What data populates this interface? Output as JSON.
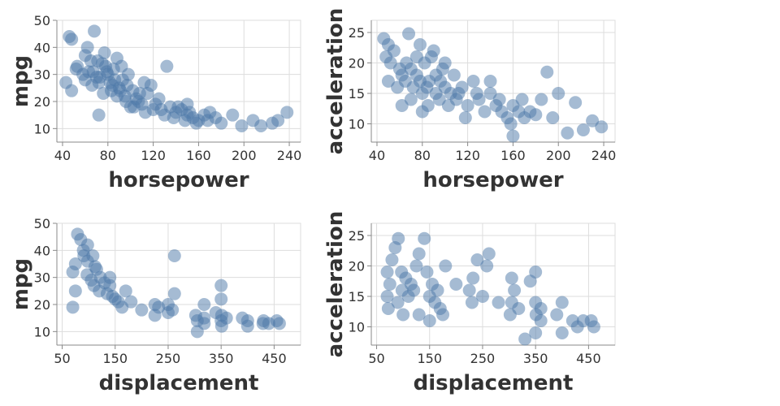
{
  "colors": {
    "point": "#4c78a8",
    "grid": "#dddddd",
    "text": "#333333"
  },
  "chart_data": [
    {
      "type": "scatter",
      "xlabel": "horsepower",
      "ylabel": "mpg",
      "xlim": [
        35,
        250
      ],
      "ylim": [
        5,
        50
      ],
      "xticks": [
        "40",
        "80",
        "120",
        "160",
        "200",
        "240"
      ],
      "yticks": [
        "10",
        "20",
        "30",
        "40",
        "50"
      ],
      "grid": true,
      "points": [
        [
          46,
          44
        ],
        [
          48,
          43
        ],
        [
          52,
          32
        ],
        [
          53,
          33
        ],
        [
          60,
          37
        ],
        [
          62,
          40
        ],
        [
          65,
          35
        ],
        [
          67,
          31
        ],
        [
          68,
          46
        ],
        [
          70,
          29
        ],
        [
          71,
          35
        ],
        [
          72,
          27
        ],
        [
          75,
          34
        ],
        [
          77,
          38
        ],
        [
          78,
          33
        ],
        [
          80,
          30
        ],
        [
          82,
          27
        ],
        [
          84,
          26
        ],
        [
          86,
          28
        ],
        [
          88,
          36
        ],
        [
          90,
          25
        ],
        [
          92,
          33
        ],
        [
          95,
          22
        ],
        [
          97,
          26
        ],
        [
          100,
          18
        ],
        [
          102,
          24
        ],
        [
          105,
          21
        ],
        [
          107,
          20
        ],
        [
          110,
          19
        ],
        [
          112,
          27
        ],
        [
          115,
          23
        ],
        [
          120,
          17
        ],
        [
          125,
          21
        ],
        [
          130,
          15
        ],
        [
          132,
          33
        ],
        [
          135,
          18
        ],
        [
          140,
          16
        ],
        [
          145,
          17
        ],
        [
          150,
          15
        ],
        [
          155,
          14
        ],
        [
          160,
          13
        ],
        [
          165,
          15
        ],
        [
          170,
          16
        ],
        [
          175,
          14
        ],
        [
          180,
          12
        ],
        [
          190,
          15
        ],
        [
          198,
          11
        ],
        [
          208,
          13
        ],
        [
          215,
          11
        ],
        [
          225,
          12
        ],
        [
          230,
          13
        ],
        [
          238,
          16
        ],
        [
          43,
          27
        ],
        [
          48,
          24
        ],
        [
          58,
          30
        ],
        [
          60,
          28
        ],
        [
          63,
          31
        ],
        [
          66,
          26
        ],
        [
          73,
          29
        ],
        [
          76,
          23
        ],
        [
          79,
          31
        ],
        [
          83,
          24
        ],
        [
          85,
          32
        ],
        [
          88,
          22
        ],
        [
          91,
          24
        ],
        [
          93,
          28
        ],
        [
          96,
          20
        ],
        [
          98,
          30
        ],
        [
          103,
          18
        ],
        [
          108,
          23
        ],
        [
          113,
          16
        ],
        [
          118,
          26
        ],
        [
          122,
          19
        ],
        [
          127,
          17
        ],
        [
          138,
          14
        ],
        [
          142,
          18
        ],
        [
          148,
          13
        ],
        [
          152,
          16
        ],
        [
          158,
          12
        ],
        [
          168,
          13
        ],
        [
          150,
          19
        ],
        [
          72,
          15
        ]
      ]
    },
    {
      "type": "scatter",
      "xlabel": "horsepower",
      "ylabel": "acceleration",
      "xlim": [
        35,
        250
      ],
      "ylim": [
        7,
        27
      ],
      "xticks": [
        "40",
        "80",
        "120",
        "160",
        "200",
        "240"
      ],
      "yticks": [
        "10",
        "15",
        "20",
        "25"
      ],
      "grid": true,
      "points": [
        [
          46,
          24
        ],
        [
          48,
          21
        ],
        [
          50,
          23
        ],
        [
          52,
          20
        ],
        [
          55,
          22
        ],
        [
          60,
          19
        ],
        [
          62,
          18
        ],
        [
          65,
          17
        ],
        [
          68,
          24.8
        ],
        [
          70,
          19
        ],
        [
          72,
          16
        ],
        [
          75,
          18
        ],
        [
          78,
          17
        ],
        [
          80,
          15
        ],
        [
          82,
          20
        ],
        [
          84,
          16
        ],
        [
          86,
          17
        ],
        [
          88,
          21
        ],
        [
          90,
          22
        ],
        [
          92,
          15
        ],
        [
          95,
          14
        ],
        [
          98,
          19
        ],
        [
          100,
          16
        ],
        [
          105,
          15
        ],
        [
          108,
          18
        ],
        [
          110,
          14
        ],
        [
          115,
          16
        ],
        [
          120,
          13
        ],
        [
          125,
          17
        ],
        [
          130,
          14
        ],
        [
          135,
          12
        ],
        [
          140,
          15
        ],
        [
          145,
          13
        ],
        [
          150,
          12
        ],
        [
          155,
          11
        ],
        [
          160,
          13
        ],
        [
          165,
          12
        ],
        [
          170,
          11
        ],
        [
          175,
          12
        ],
        [
          180,
          11.5
        ],
        [
          190,
          18.5
        ],
        [
          195,
          11
        ],
        [
          200,
          15
        ],
        [
          208,
          8.5
        ],
        [
          215,
          13.5
        ],
        [
          222,
          9
        ],
        [
          230,
          10.5
        ],
        [
          238,
          9.5
        ],
        [
          160,
          8
        ],
        [
          140,
          17
        ],
        [
          62,
          13
        ],
        [
          58,
          16
        ],
        [
          75,
          21
        ],
        [
          85,
          13
        ],
        [
          96,
          17
        ],
        [
          103,
          13
        ],
        [
          112,
          15
        ],
        [
          118,
          11
        ],
        [
          128,
          15
        ],
        [
          148,
          14
        ],
        [
          158,
          10
        ],
        [
          168,
          14
        ],
        [
          185,
          14
        ],
        [
          70,
          14
        ],
        [
          80,
          12
        ],
        [
          92,
          18
        ],
        [
          100,
          20
        ],
        [
          50,
          17
        ],
        [
          66,
          20
        ],
        [
          78,
          23
        ]
      ]
    },
    {
      "type": "scatter",
      "xlabel": "displacement",
      "ylabel": "mpg",
      "xlim": [
        40,
        500
      ],
      "ylim": [
        5,
        50
      ],
      "xticks": [
        "50",
        "150",
        "250",
        "350",
        "450"
      ],
      "yticks": [
        "10",
        "20",
        "30",
        "40",
        "50"
      ],
      "grid": true,
      "points": [
        [
          70,
          32
        ],
        [
          75,
          35
        ],
        [
          79,
          46
        ],
        [
          85,
          44
        ],
        [
          90,
          40
        ],
        [
          91,
          38
        ],
        [
          97,
          31
        ],
        [
          98,
          36
        ],
        [
          105,
          29
        ],
        [
          110,
          27
        ],
        [
          115,
          33
        ],
        [
          120,
          25
        ],
        [
          122,
          30
        ],
        [
          130,
          28
        ],
        [
          135,
          24
        ],
        [
          140,
          27
        ],
        [
          145,
          23
        ],
        [
          150,
          22
        ],
        [
          156,
          21
        ],
        [
          163,
          19
        ],
        [
          170,
          25
        ],
        [
          180,
          21
        ],
        [
          200,
          18
        ],
        [
          225,
          20
        ],
        [
          232,
          19
        ],
        [
          250,
          17
        ],
        [
          258,
          18
        ],
        [
          262,
          38
        ],
        [
          262,
          24
        ],
        [
          302,
          16
        ],
        [
          305,
          14
        ],
        [
          318,
          15
        ],
        [
          318,
          13
        ],
        [
          340,
          17
        ],
        [
          350,
          14
        ],
        [
          350,
          27
        ],
        [
          351,
          16
        ],
        [
          360,
          15
        ],
        [
          400,
          14
        ],
        [
          400,
          12
        ],
        [
          429,
          13
        ],
        [
          440,
          13
        ],
        [
          455,
          14
        ],
        [
          460,
          13
        ],
        [
          305,
          10
        ],
        [
          70,
          19
        ],
        [
          75,
          25
        ],
        [
          98,
          42
        ],
        [
          108,
          38
        ],
        [
          112,
          34
        ],
        [
          140,
          30
        ],
        [
          225,
          16
        ],
        [
          250,
          20
        ],
        [
          350,
          22
        ],
        [
          390,
          15
        ],
        [
          430,
          14
        ],
        [
          318,
          20
        ],
        [
          351,
          12
        ]
      ]
    },
    {
      "type": "scatter",
      "xlabel": "displacement",
      "ylabel": "acceleration",
      "xlim": [
        40,
        500
      ],
      "ylim": [
        7,
        27
      ],
      "xticks": [
        "50",
        "150",
        "250",
        "350",
        "450"
      ],
      "yticks": [
        "10",
        "15",
        "20",
        "25"
      ],
      "grid": true,
      "points": [
        [
          70,
          19
        ],
        [
          72,
          13
        ],
        [
          75,
          17
        ],
        [
          79,
          21
        ],
        [
          85,
          23
        ],
        [
          91,
          24.5
        ],
        [
          97,
          19
        ],
        [
          98,
          16
        ],
        [
          105,
          18
        ],
        [
          110,
          15
        ],
        [
          115,
          17
        ],
        [
          120,
          16
        ],
        [
          125,
          20
        ],
        [
          130,
          22
        ],
        [
          140,
          24.5
        ],
        [
          145,
          19
        ],
        [
          150,
          15
        ],
        [
          155,
          17
        ],
        [
          160,
          14
        ],
        [
          165,
          16
        ],
        [
          170,
          13
        ],
        [
          180,
          20
        ],
        [
          200,
          17
        ],
        [
          225,
          16
        ],
        [
          232,
          18
        ],
        [
          240,
          21
        ],
        [
          250,
          15
        ],
        [
          258,
          20
        ],
        [
          262,
          22
        ],
        [
          302,
          12
        ],
        [
          305,
          14
        ],
        [
          310,
          16
        ],
        [
          318,
          13
        ],
        [
          340,
          17.5
        ],
        [
          350,
          14
        ],
        [
          350,
          19
        ],
        [
          351,
          12
        ],
        [
          360,
          11
        ],
        [
          390,
          12
        ],
        [
          400,
          14
        ],
        [
          400,
          9
        ],
        [
          420,
          11
        ],
        [
          429,
          10
        ],
        [
          440,
          11
        ],
        [
          455,
          11
        ],
        [
          460,
          10
        ],
        [
          305,
          18
        ],
        [
          360,
          13
        ],
        [
          70,
          15
        ],
        [
          90,
          14
        ],
        [
          100,
          12
        ],
        [
          130,
          12
        ],
        [
          150,
          11
        ],
        [
          175,
          12
        ],
        [
          230,
          14
        ],
        [
          280,
          14
        ],
        [
          350,
          9
        ],
        [
          330,
          8
        ]
      ]
    }
  ]
}
